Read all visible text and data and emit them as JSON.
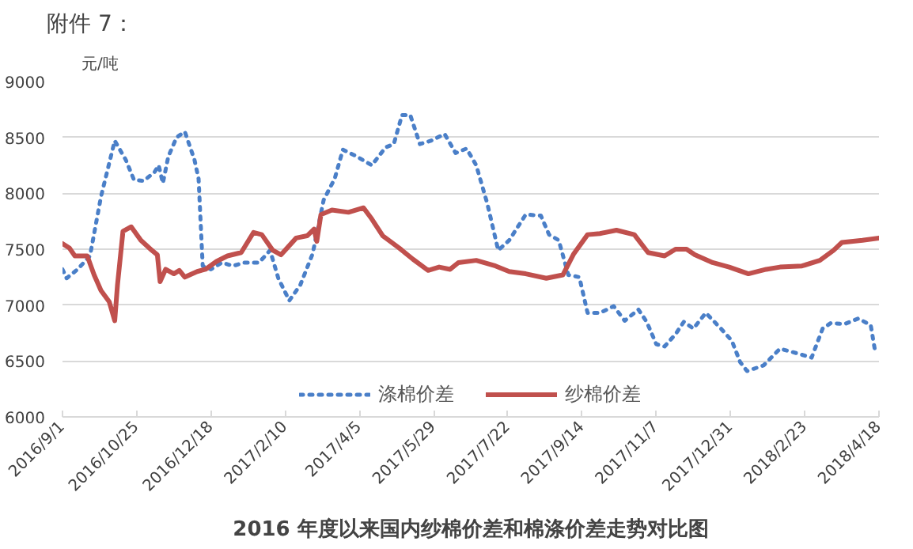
{
  "chart_data": {
    "type": "line",
    "title": "2016 年度以来国内纱棉价差和棉涤价差走势对比图",
    "ylabel": "元/吨",
    "annotations": [
      "附件 7："
    ],
    "xlim": [
      "2016-09-01",
      "2018-04-18"
    ],
    "xticks": [
      {
        "value": "2016-09-01",
        "label": "2016/9/1"
      },
      {
        "value": "2016-10-25",
        "label": "2016/10/25"
      },
      {
        "value": "2016-12-18",
        "label": "2016/12/18"
      },
      {
        "value": "2017-02-10",
        "label": "2017/2/10"
      },
      {
        "value": "2017-04-05",
        "label": "2017/4/5"
      },
      {
        "value": "2017-05-29",
        "label": "2017/5/29"
      },
      {
        "value": "2017-07-22",
        "label": "2017/7/22"
      },
      {
        "value": "2017-09-14",
        "label": "2017/9/14"
      },
      {
        "value": "2017-11-07",
        "label": "2017/11/7"
      },
      {
        "value": "2017-12-31",
        "label": "2017/12/31"
      },
      {
        "value": "2018-02-23",
        "label": "2018/2/23"
      },
      {
        "value": "2018-04-18",
        "label": "2018/4/18"
      }
    ],
    "ylim": [
      6000,
      9000
    ],
    "yticks": [
      6000,
      6500,
      7000,
      7500,
      8000,
      8500,
      9000
    ],
    "grid": "y",
    "legend": "bottom",
    "marker": "none",
    "series": [
      {
        "name": "涤棉价差",
        "color": "#4a7fc8",
        "line_style": "dotted",
        "x": [
          "2016-09-01",
          "2016-09-04",
          "2016-09-12",
          "2016-09-21",
          "2016-09-29",
          "2016-10-09",
          "2016-10-17",
          "2016-10-23",
          "2016-10-30",
          "2016-11-07",
          "2016-11-10",
          "2016-11-13",
          "2016-11-17",
          "2016-11-23",
          "2016-11-29",
          "2016-12-06",
          "2016-12-09",
          "2016-12-12",
          "2016-12-18",
          "2016-12-26",
          "2017-01-03",
          "2017-01-11",
          "2017-01-22",
          "2017-01-30",
          "2017-02-05",
          "2017-02-13",
          "2017-02-21",
          "2017-03-02",
          "2017-03-10",
          "2017-03-18",
          "2017-03-24",
          "2017-04-03",
          "2017-04-14",
          "2017-04-24",
          "2017-04-30",
          "2017-05-06",
          "2017-05-12",
          "2017-05-19",
          "2017-05-27",
          "2017-06-06",
          "2017-06-14",
          "2017-06-22",
          "2017-06-29",
          "2017-07-07",
          "2017-07-15",
          "2017-07-23",
          "2017-08-04",
          "2017-08-15",
          "2017-08-21",
          "2017-08-28",
          "2017-09-04",
          "2017-09-12",
          "2017-09-18",
          "2017-09-27",
          "2017-10-07",
          "2017-10-15",
          "2017-10-25",
          "2017-10-31",
          "2017-11-07",
          "2017-11-13",
          "2017-11-21",
          "2017-11-27",
          "2017-12-04",
          "2017-12-13",
          "2017-12-24",
          "2018-01-01",
          "2018-01-07",
          "2018-01-12",
          "2018-01-24",
          "2018-02-05",
          "2018-02-17",
          "2018-02-28",
          "2018-03-08",
          "2018-03-14",
          "2018-03-24",
          "2018-04-03",
          "2018-04-12",
          "2018-04-15"
        ],
        "values": [
          7320,
          7240,
          7320,
          7440,
          7970,
          8470,
          8300,
          8120,
          8110,
          8190,
          8250,
          8090,
          8330,
          8500,
          8550,
          8300,
          8130,
          7350,
          7320,
          7380,
          7350,
          7380,
          7380,
          7490,
          7240,
          7040,
          7180,
          7460,
          7940,
          8130,
          8390,
          8330,
          8250,
          8410,
          8440,
          8700,
          8700,
          8440,
          8470,
          8530,
          8360,
          8400,
          8250,
          7910,
          7490,
          7580,
          7810,
          7800,
          7630,
          7580,
          7270,
          7250,
          6930,
          6930,
          6990,
          6860,
          6960,
          6850,
          6650,
          6630,
          6740,
          6850,
          6790,
          6930,
          6790,
          6680,
          6490,
          6410,
          6460,
          6610,
          6570,
          6530,
          6790,
          6840,
          6830,
          6880,
          6820,
          6600
        ]
      },
      {
        "name": "纱棉价差",
        "color": "#c0504d",
        "line_style": "solid",
        "x": [
          "2016-09-01",
          "2016-09-06",
          "2016-09-10",
          "2016-09-19",
          "2016-09-24",
          "2016-09-29",
          "2016-10-05",
          "2016-10-09",
          "2016-10-11",
          "2016-10-15",
          "2016-10-21",
          "2016-10-28",
          "2016-11-05",
          "2016-11-09",
          "2016-11-11",
          "2016-11-15",
          "2016-11-21",
          "2016-11-25",
          "2016-11-29",
          "2016-12-08",
          "2016-12-14",
          "2016-12-22",
          "2016-12-30",
          "2017-01-09",
          "2017-01-18",
          "2017-01-24",
          "2017-02-01",
          "2017-02-07",
          "2017-02-18",
          "2017-02-26",
          "2017-03-03",
          "2017-03-05",
          "2017-03-08",
          "2017-03-16",
          "2017-03-28",
          "2017-04-08",
          "2017-04-14",
          "2017-04-22",
          "2017-05-04",
          "2017-05-14",
          "2017-05-25",
          "2017-06-02",
          "2017-06-10",
          "2017-06-16",
          "2017-06-29",
          "2017-07-13",
          "2017-07-23",
          "2017-08-04",
          "2017-08-19",
          "2017-08-31",
          "2017-09-08",
          "2017-09-18",
          "2017-09-27",
          "2017-10-09",
          "2017-10-22",
          "2017-11-01",
          "2017-11-13",
          "2017-11-21",
          "2017-11-29",
          "2017-12-05",
          "2017-12-18",
          "2017-12-30",
          "2018-01-13",
          "2018-01-26",
          "2018-02-05",
          "2018-02-21",
          "2018-03-06",
          "2018-03-16",
          "2018-03-22",
          "2018-04-06",
          "2018-04-18"
        ],
        "values": [
          7550,
          7510,
          7440,
          7440,
          7270,
          7130,
          7030,
          6860,
          7180,
          7660,
          7700,
          7580,
          7490,
          7450,
          7210,
          7320,
          7280,
          7310,
          7250,
          7300,
          7320,
          7390,
          7440,
          7470,
          7650,
          7630,
          7490,
          7450,
          7600,
          7620,
          7680,
          7570,
          7810,
          7850,
          7830,
          7870,
          7770,
          7620,
          7510,
          7410,
          7310,
          7340,
          7320,
          7380,
          7400,
          7350,
          7300,
          7280,
          7240,
          7270,
          7460,
          7630,
          7640,
          7670,
          7630,
          7470,
          7440,
          7500,
          7500,
          7450,
          7380,
          7340,
          7280,
          7320,
          7340,
          7350,
          7400,
          7490,
          7560,
          7580,
          7600
        ]
      }
    ]
  }
}
